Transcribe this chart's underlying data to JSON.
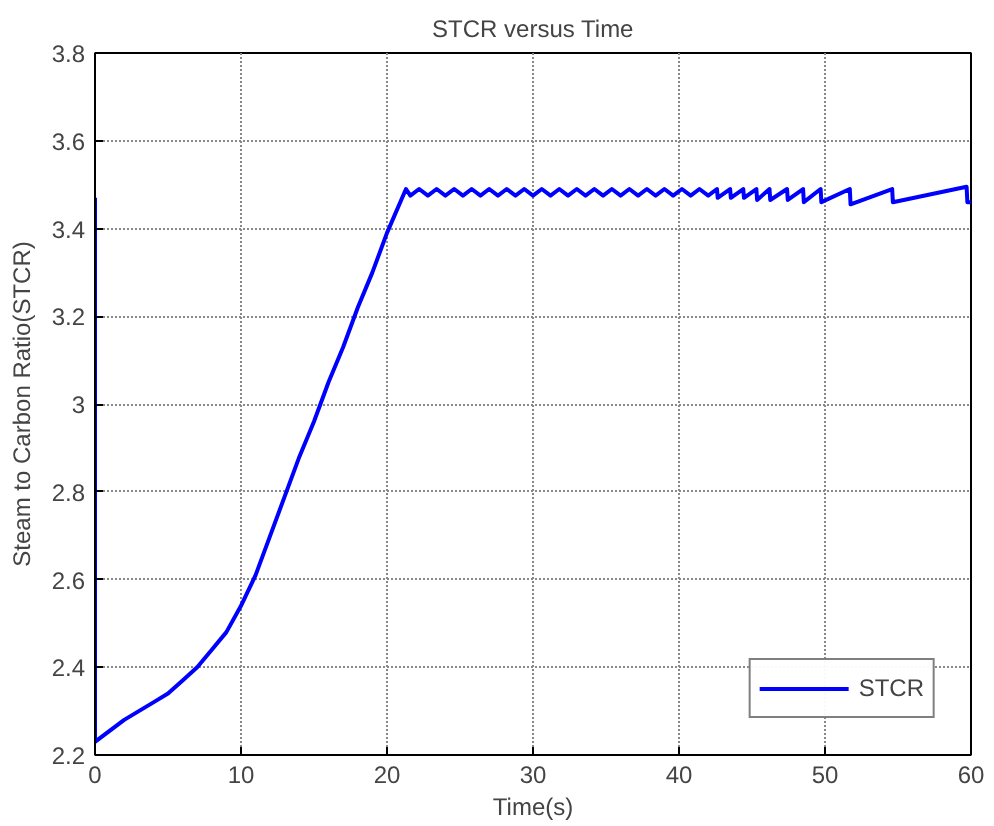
{
  "chart_data": {
    "type": "line",
    "title": "STCR versus Time",
    "xlabel": "Time(s)",
    "ylabel": "Steam to Carbon Ratio(STCR)",
    "xlim": [
      0,
      60
    ],
    "ylim": [
      2.2,
      3.8
    ],
    "xticks": [
      0,
      10,
      20,
      30,
      40,
      50,
      60
    ],
    "yticks": [
      2.2,
      2.4,
      2.6,
      2.8,
      3,
      3.2,
      3.4,
      3.6,
      3.8
    ],
    "grid": true,
    "legend": "bottom right",
    "line_style": "solid",
    "series": [
      {
        "name": "STCR",
        "color": "#0000ff",
        "x": [
          0,
          0,
          2,
          4,
          5,
          6,
          7,
          8,
          9,
          10,
          11,
          12,
          13,
          14,
          15,
          16,
          17,
          18,
          19,
          20,
          21.3,
          21.6,
          22.2,
          22.8,
          23.4,
          24.0,
          24.6,
          25.2,
          25.8,
          26.4,
          27.0,
          27.6,
          28.2,
          28.8,
          29.4,
          30.0,
          30.6,
          31.2,
          31.8,
          32.4,
          33.0,
          33.6,
          34.2,
          34.8,
          35.4,
          36.0,
          36.6,
          37.2,
          37.8,
          38.4,
          39.0,
          39.6,
          40.2,
          40.8,
          41.4,
          42.0,
          42.6,
          42.65,
          43.5,
          43.55,
          44.4,
          44.45,
          45.3,
          45.35,
          46.2,
          46.25,
          47.4,
          47.45,
          48.5,
          48.55,
          49.7,
          49.75,
          51.7,
          51.75,
          54.6,
          54.65,
          59.7,
          59.75,
          60
        ],
        "values": [
          3.47,
          2.23,
          2.28,
          2.32,
          2.34,
          2.37,
          2.4,
          2.44,
          2.48,
          2.54,
          2.61,
          2.7,
          2.79,
          2.88,
          2.96,
          3.05,
          3.13,
          3.22,
          3.3,
          3.39,
          3.49,
          3.475,
          3.49,
          3.475,
          3.49,
          3.475,
          3.49,
          3.475,
          3.49,
          3.475,
          3.49,
          3.475,
          3.49,
          3.475,
          3.49,
          3.475,
          3.49,
          3.475,
          3.49,
          3.475,
          3.49,
          3.475,
          3.49,
          3.475,
          3.49,
          3.475,
          3.49,
          3.475,
          3.49,
          3.475,
          3.49,
          3.475,
          3.49,
          3.475,
          3.49,
          3.475,
          3.49,
          3.47,
          3.49,
          3.47,
          3.49,
          3.47,
          3.49,
          3.465,
          3.49,
          3.465,
          3.49,
          3.465,
          3.49,
          3.46,
          3.49,
          3.46,
          3.49,
          3.455,
          3.49,
          3.46,
          3.495,
          3.46,
          3.46
        ]
      }
    ]
  }
}
